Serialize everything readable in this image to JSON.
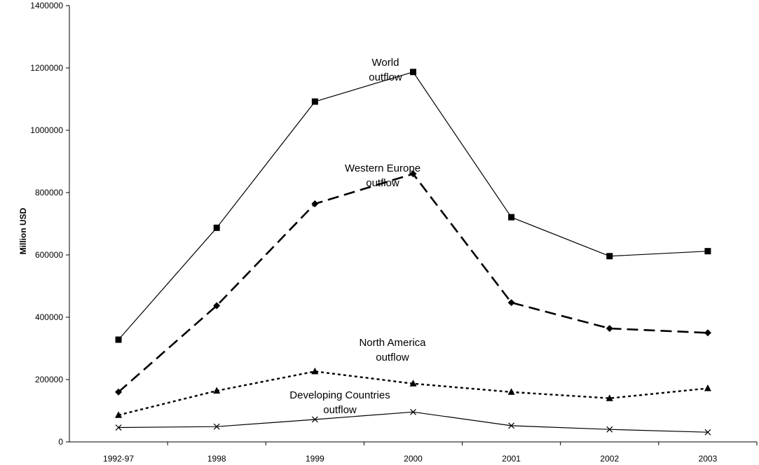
{
  "chart_data": {
    "type": "line",
    "title": "",
    "xlabel": "",
    "ylabel": "Million USD",
    "categories": [
      "1992-97",
      "1998",
      "1999",
      "2000",
      "2001",
      "2002",
      "2003"
    ],
    "ylim": [
      0,
      1400000
    ],
    "yticks": [
      0,
      200000,
      400000,
      600000,
      800000,
      1000000,
      1200000,
      1400000
    ],
    "grid": false,
    "legend": "none",
    "series": [
      {
        "values": [
          328000,
          687000,
          1092000,
          1187000,
          721000,
          596000,
          612000
        ],
        "line_style": "solid",
        "marker": "square",
        "color": "#000000"
      },
      {
        "values": [
          160000,
          437000,
          764000,
          860000,
          447000,
          364000,
          350000
        ],
        "line_style": "dashed",
        "marker": "diamond",
        "color": "#000000"
      },
      {
        "values": [
          86000,
          164000,
          226000,
          187000,
          160000,
          140000,
          172000
        ],
        "line_style": "dotted",
        "marker": "triangle",
        "color": "#000000"
      },
      {
        "values": [
          46000,
          49000,
          72000,
          96000,
          52000,
          40000,
          31000
        ],
        "line_style": "solid",
        "marker": "x",
        "color": "#000000"
      }
    ],
    "annotations": [
      {
        "lines": [
          "World",
          "outflow"
        ]
      },
      {
        "lines": [
          "Western Europe",
          "outflow"
        ]
      },
      {
        "lines": [
          "North America",
          "outflow"
        ]
      },
      {
        "lines": [
          "Developing Countries",
          "outflow"
        ]
      }
    ]
  }
}
